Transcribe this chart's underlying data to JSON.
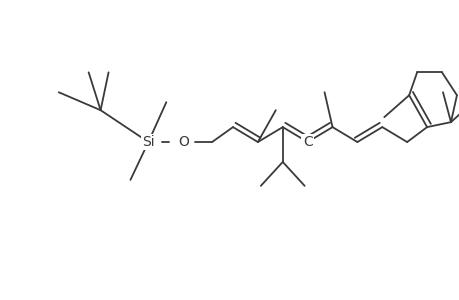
{
  "line_color": "#3a3a3a",
  "bg_color": "#ffffff",
  "line_width": 1.3,
  "figsize": [
    4.6,
    3.0
  ],
  "dpi": 100,
  "xlim": [
    0,
    460
  ],
  "ylim": [
    0,
    300
  ]
}
